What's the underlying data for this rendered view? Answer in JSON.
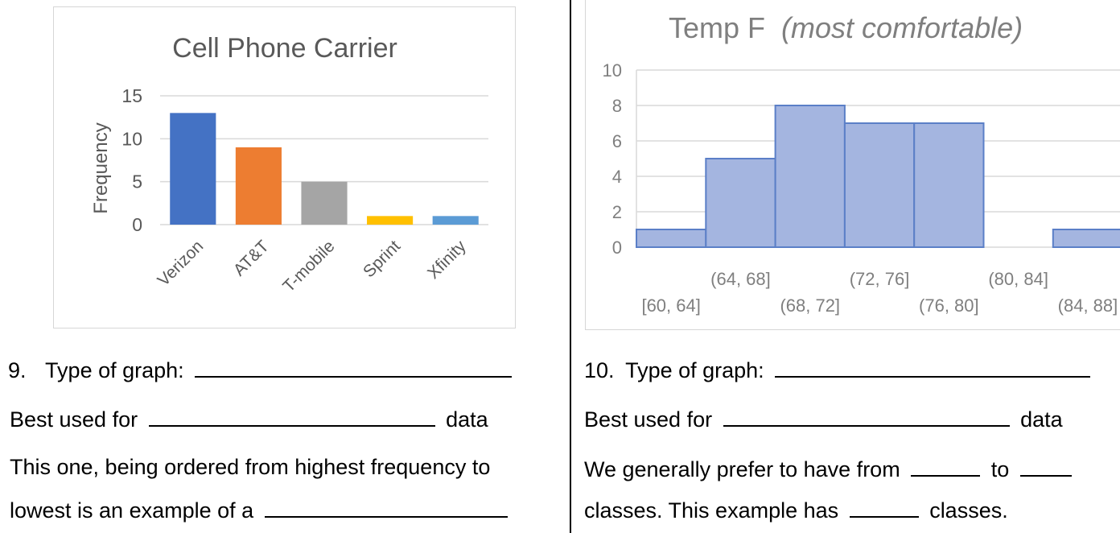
{
  "left_section": {
    "chart_data": {
      "type": "bar",
      "title": "Cell Phone Carrier",
      "ylabel": "Frequency",
      "categories": [
        "Verizon",
        "AT&T",
        "T-mobile",
        "Sprint",
        "Xfinity"
      ],
      "values": [
        13,
        9,
        5,
        1,
        1
      ],
      "colors": [
        "#4472c4",
        "#ed7d31",
        "#a5a5a5",
        "#ffc000",
        "#5b9bd5"
      ],
      "yticks": [
        "0",
        "5",
        "10",
        "15"
      ],
      "ylim": [
        0,
        15
      ],
      "grid": true
    },
    "q_number": "9.",
    "type_label": "Type of graph:",
    "best_used_label": "Best used for",
    "data_word": "data",
    "ordered_line1": "This one, being ordered from highest frequency to",
    "ordered_line2": "lowest is an example of a"
  },
  "right_section": {
    "chart_data": {
      "type": "bar",
      "title": "Temp F",
      "title_italic": "(most comfortable)",
      "categories": [
        "[60, 64]",
        "(64, 68]",
        "(68, 72]",
        "(72, 76]",
        "(76, 80]",
        "(80, 84]",
        "(84, 88]"
      ],
      "values": [
        1,
        5,
        8,
        7,
        7,
        0,
        1
      ],
      "color": "#a4b5e0",
      "edge_color": "#5b7fc7",
      "yticks": [
        "0",
        "2",
        "4",
        "6",
        "8",
        "10"
      ],
      "ylim": [
        0,
        10
      ],
      "grid": true
    },
    "q_number": "10.",
    "type_label": "Type of graph:",
    "best_used_label": "Best used for",
    "data_word": "data",
    "prefer_from": "We generally prefer to have from",
    "prefer_to": "to",
    "classes_has": "classes.  This example has",
    "classes_end": "classes."
  }
}
